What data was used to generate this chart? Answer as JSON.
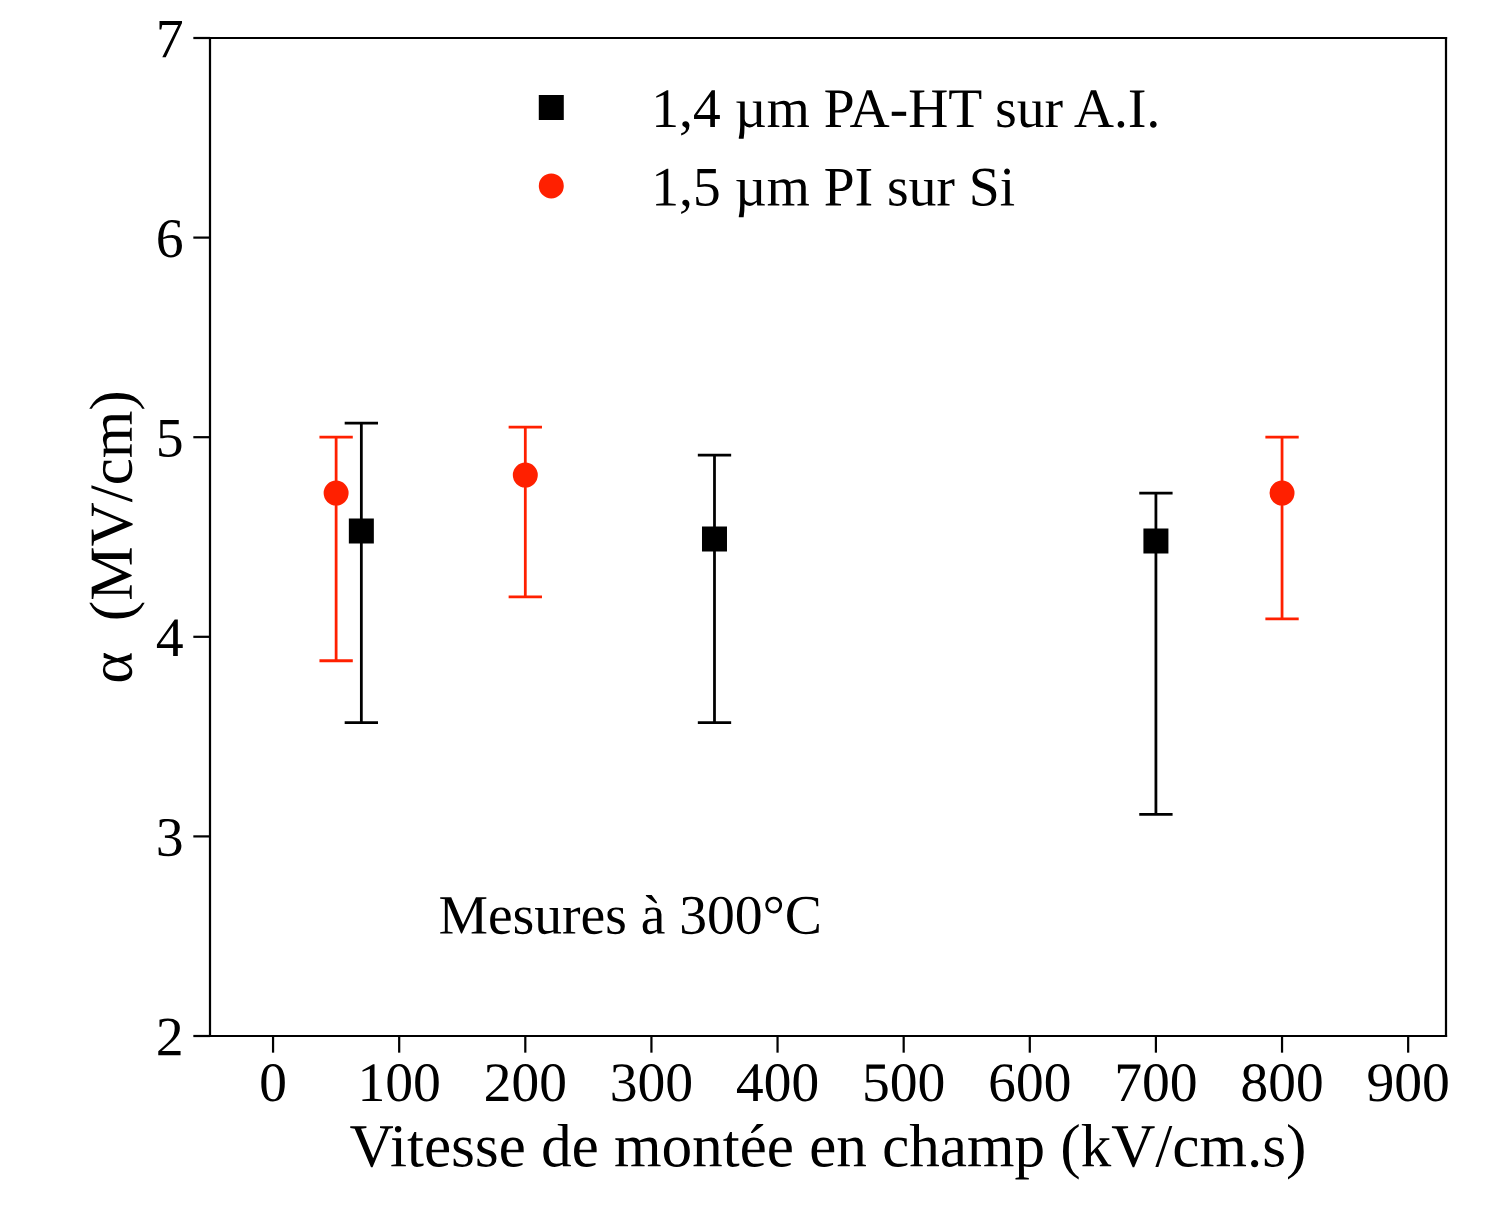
{
  "chart_data": {
    "type": "scatter",
    "xlabel": "Vitesse de montée en champ (kV/cm.s)",
    "ylabel": "α  (MV/cm)",
    "xlim": [
      -50,
      930
    ],
    "xticks": [
      0,
      100,
      200,
      300,
      400,
      500,
      600,
      700,
      800,
      900
    ],
    "ylim": [
      2,
      7
    ],
    "yticks": [
      2,
      3,
      4,
      5,
      6,
      7
    ],
    "grid": false,
    "legend": "top",
    "series": [
      {
        "name": "1,4 µm PA-HT sur A.I.",
        "color": "#000000",
        "marker": "square",
        "x": [
          70,
          350,
          700
        ],
        "values": [
          4.53,
          4.49,
          4.48
        ],
        "errors": [
          [
            3.57,
            5.07
          ],
          [
            3.57,
            4.91
          ],
          [
            3.11,
            4.72
          ]
        ]
      },
      {
        "name": "1,5 µm PI sur Si",
        "color": "#ff2000",
        "marker": "circle",
        "x": [
          50,
          200,
          800
        ],
        "values": [
          4.72,
          4.81,
          4.72
        ],
        "errors": [
          [
            3.88,
            5.0
          ],
          [
            4.2,
            5.05
          ],
          [
            4.09,
            5.0
          ]
        ]
      }
    ],
    "annotations": [
      "Mesures à 300°C"
    ]
  }
}
